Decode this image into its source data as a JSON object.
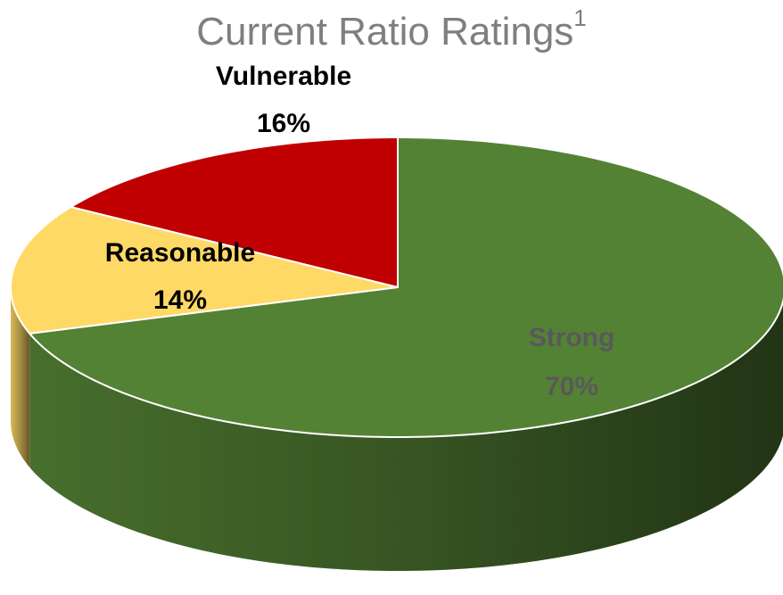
{
  "chart_data": {
    "type": "pie",
    "title": "Current Ratio Ratings",
    "title_superscript": "1",
    "categories": [
      "Strong",
      "Reasonable",
      "Vulnerable"
    ],
    "values": [
      70,
      14,
      16
    ],
    "value_labels": [
      "70%",
      "14%",
      "16%"
    ],
    "colors": [
      "#548235",
      "#ffd966",
      "#c00000"
    ]
  }
}
